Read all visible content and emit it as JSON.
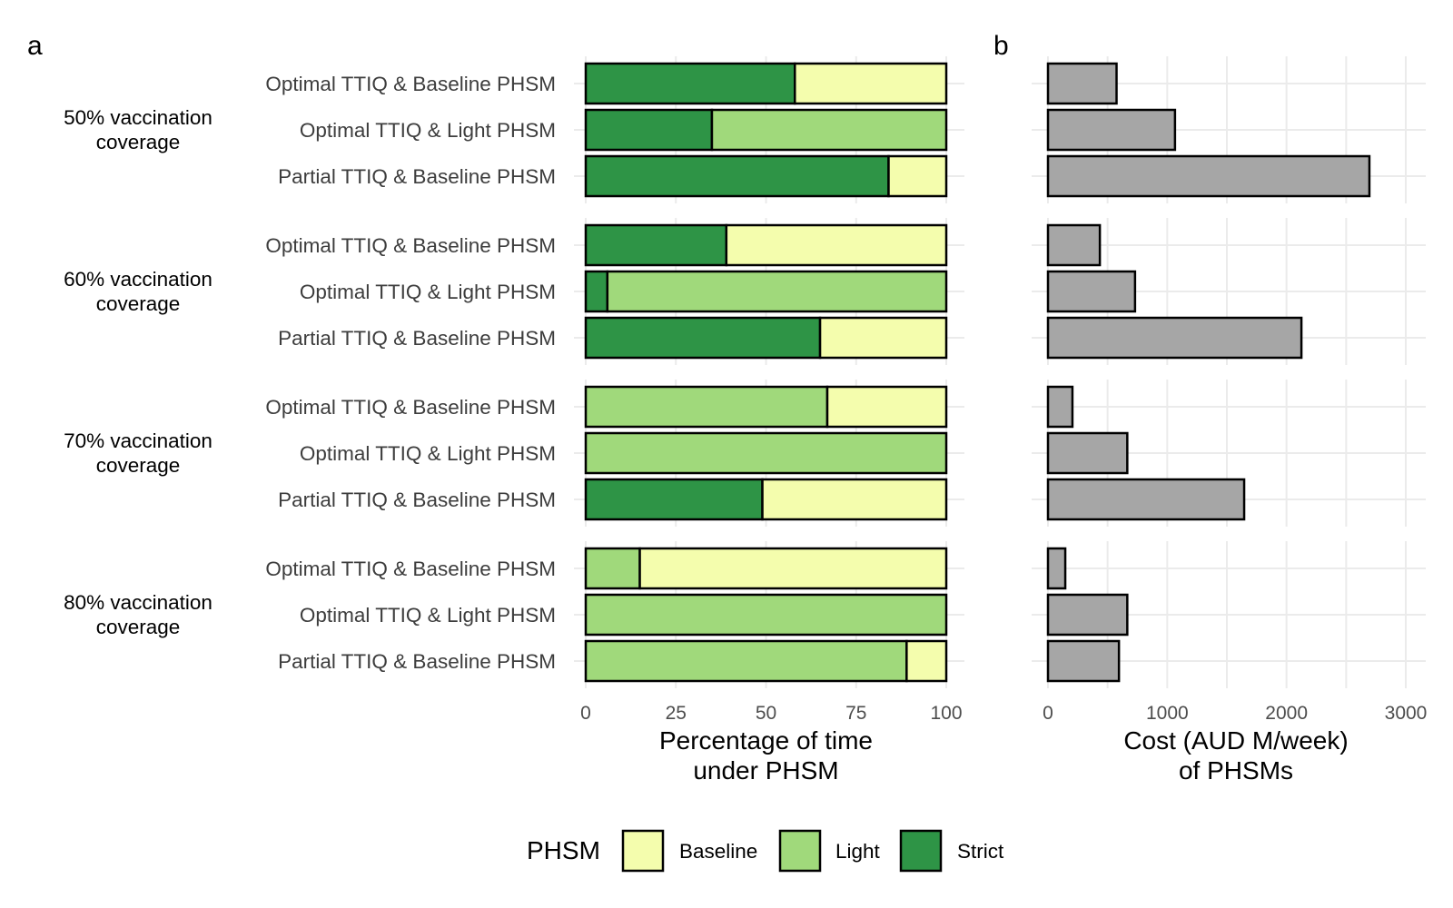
{
  "panel_labels": {
    "a": "a",
    "b": "b"
  },
  "chart_data": [
    {
      "type": "bar",
      "orientation": "horizontal",
      "stacked": true,
      "panel": "a",
      "xlabel": "Percentage of time\nunder PHSM",
      "xlim": [
        0,
        100
      ],
      "xticks": [
        "0",
        "25",
        "50",
        "75",
        "100"
      ],
      "xtick_values": [
        0,
        25,
        50,
        75,
        100
      ],
      "groups": [
        {
          "label": "50% vaccination\ncoverage",
          "rows": [
            {
              "label": "Optimal TTIQ & Baseline PHSM",
              "Strict": 58,
              "Light": 0,
              "Baseline": 42
            },
            {
              "label": "Optimal TTIQ & Light PHSM",
              "Strict": 35,
              "Light": 65,
              "Baseline": 0
            },
            {
              "label": "Partial TTIQ & Baseline PHSM",
              "Strict": 84,
              "Light": 0,
              "Baseline": 16
            }
          ]
        },
        {
          "label": "60% vaccination\ncoverage",
          "rows": [
            {
              "label": "Optimal TTIQ & Baseline PHSM",
              "Strict": 39,
              "Light": 0,
              "Baseline": 61
            },
            {
              "label": "Optimal TTIQ & Light PHSM",
              "Strict": 6,
              "Light": 94,
              "Baseline": 0
            },
            {
              "label": "Partial TTIQ & Baseline PHSM",
              "Strict": 65,
              "Light": 0,
              "Baseline": 35
            }
          ]
        },
        {
          "label": "70% vaccination\ncoverage",
          "rows": [
            {
              "label": "Optimal TTIQ & Baseline PHSM",
              "Strict": 0,
              "Light": 67,
              "Baseline": 33
            },
            {
              "label": "Optimal TTIQ & Light PHSM",
              "Strict": 0,
              "Light": 100,
              "Baseline": 0
            },
            {
              "label": "Partial TTIQ & Baseline PHSM",
              "Strict": 49,
              "Light": 0,
              "Baseline": 51
            }
          ]
        },
        {
          "label": "80% vaccination\ncoverage",
          "rows": [
            {
              "label": "Optimal TTIQ & Baseline PHSM",
              "Strict": 0,
              "Light": 15,
              "Baseline": 85
            },
            {
              "label": "Optimal TTIQ & Light PHSM",
              "Strict": 0,
              "Light": 100,
              "Baseline": 0
            },
            {
              "label": "Partial TTIQ & Baseline PHSM",
              "Strict": 0,
              "Light": 89,
              "Baseline": 11
            }
          ]
        }
      ],
      "series_order": [
        "Strict",
        "Light",
        "Baseline"
      ],
      "colors": {
        "Baseline": "#f4fdad",
        "Light": "#a0d97b",
        "Strict": "#2e9446"
      },
      "legend": {
        "title": "PHSM",
        "position": "bottom",
        "entries": [
          {
            "name": "Baseline",
            "color": "#f4fdad"
          },
          {
            "name": "Light",
            "color": "#a0d97b"
          },
          {
            "name": "Strict",
            "color": "#2e9446"
          }
        ]
      }
    },
    {
      "type": "bar",
      "orientation": "horizontal",
      "panel": "b",
      "xlabel": "Cost (AUD M/week)\nof PHSMs",
      "xlim": [
        0,
        3000
      ],
      "xticks": [
        "0",
        "1000",
        "2000",
        "3000"
      ],
      "xtick_values": [
        0,
        1000,
        2000,
        3000
      ],
      "bar_color": "#a6a6a6",
      "groups": [
        {
          "values": [
            575,
            1065,
            2695
          ]
        },
        {
          "values": [
            435,
            730,
            2125
          ]
        },
        {
          "values": [
            205,
            665,
            1645
          ]
        },
        {
          "values": [
            145,
            665,
            595
          ]
        }
      ],
      "grid": true
    }
  ]
}
